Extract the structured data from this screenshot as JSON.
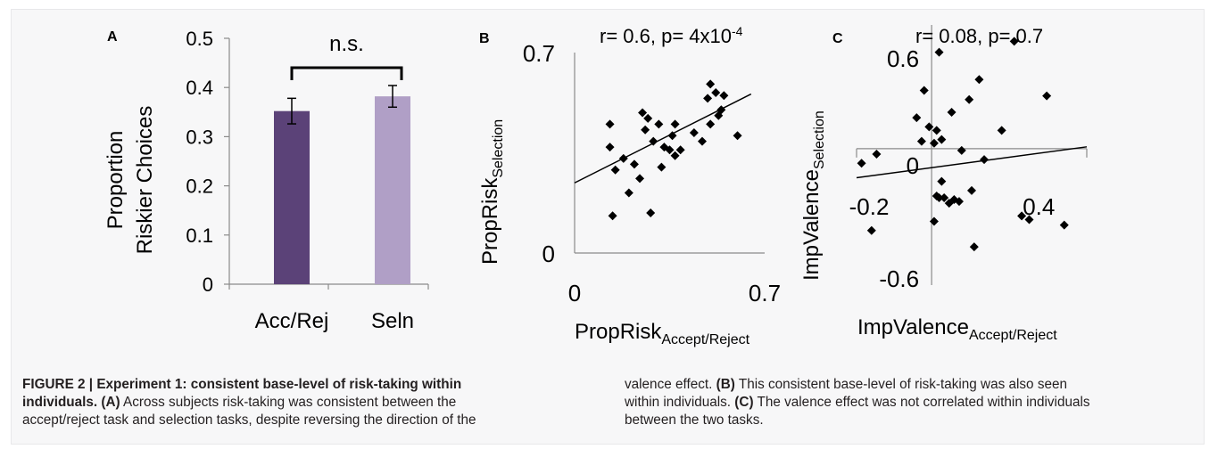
{
  "chart_data": [
    {
      "panel": "A",
      "type": "bar",
      "ylabel": [
        "Proportion",
        "Riskier Choices"
      ],
      "ylim": [
        0,
        0.5
      ],
      "yticks": [
        "0",
        "0.1",
        "0.2",
        "0.3",
        "0.4",
        "0.5"
      ],
      "categories": [
        "Acc/Rej",
        "Seln"
      ],
      "values": [
        0.352,
        0.382
      ],
      "errors": [
        0.026,
        0.022
      ],
      "colors": [
        "#5b4278",
        "#b09fc6"
      ],
      "annotation": "n.s.",
      "grid": false
    },
    {
      "panel": "B",
      "type": "scatter",
      "stats": "r= 0.6, p= 4x10",
      "stats_exp": "-4",
      "xlabel_main": "PropRisk",
      "xlabel_sub": "Accept/Reject",
      "ylabel_main": "PropRisk",
      "ylabel_sub": "Selection",
      "xlim": [
        0,
        0.7
      ],
      "ylim": [
        0,
        0.7
      ],
      "xticks": [
        "0",
        "0.7"
      ],
      "yticks": [
        "0",
        "0.7"
      ],
      "points": [
        [
          0.13,
          0.45
        ],
        [
          0.13,
          0.37
        ],
        [
          0.15,
          0.29
        ],
        [
          0.14,
          0.13
        ],
        [
          0.18,
          0.33
        ],
        [
          0.2,
          0.21
        ],
        [
          0.22,
          0.31
        ],
        [
          0.24,
          0.26
        ],
        [
          0.25,
          0.49
        ],
        [
          0.26,
          0.43
        ],
        [
          0.27,
          0.47
        ],
        [
          0.28,
          0.14
        ],
        [
          0.29,
          0.39
        ],
        [
          0.31,
          0.45
        ],
        [
          0.32,
          0.3
        ],
        [
          0.33,
          0.37
        ],
        [
          0.35,
          0.36
        ],
        [
          0.36,
          0.41
        ],
        [
          0.37,
          0.34
        ],
        [
          0.37,
          0.45
        ],
        [
          0.39,
          0.36
        ],
        [
          0.44,
          0.42
        ],
        [
          0.47,
          0.39
        ],
        [
          0.49,
          0.54
        ],
        [
          0.5,
          0.45
        ],
        [
          0.5,
          0.59
        ],
        [
          0.52,
          0.56
        ],
        [
          0.53,
          0.48
        ],
        [
          0.54,
          0.5
        ],
        [
          0.55,
          0.55
        ],
        [
          0.6,
          0.41
        ]
      ],
      "fit": {
        "x": [
          0,
          0.65
        ],
        "y": [
          0.245,
          0.555
        ]
      },
      "grid": false
    },
    {
      "panel": "C",
      "type": "scatter",
      "stats": "r= 0.08, p= 0.7",
      "xlabel_main": "ImpValence",
      "xlabel_sub": "Accept/Reject",
      "ylabel_main": "ImpValence",
      "ylabel_sub": "Selection",
      "xlim": [
        -0.3,
        0.62
      ],
      "ylim": [
        -0.75,
        0.68
      ],
      "xticks": [
        "-0.2",
        "0.4"
      ],
      "yticks": [
        "0.6",
        "0",
        "-0.6"
      ],
      "points": [
        [
          -0.28,
          -0.08
        ],
        [
          -0.24,
          -0.45
        ],
        [
          -0.22,
          -0.03
        ],
        [
          -0.06,
          0.17
        ],
        [
          -0.04,
          0.04
        ],
        [
          -0.03,
          0.32
        ],
        [
          -0.01,
          0.12
        ],
        [
          0.01,
          0.03
        ],
        [
          0.01,
          -0.4
        ],
        [
          0.02,
          0.1
        ],
        [
          0.02,
          -0.26
        ],
        [
          0.03,
          -0.27
        ],
        [
          0.03,
          0.53
        ],
        [
          0.04,
          0.05
        ],
        [
          0.04,
          -0.18
        ],
        [
          0.05,
          -0.27
        ],
        [
          0.07,
          -0.3
        ],
        [
          0.08,
          0.2
        ],
        [
          0.09,
          -0.28
        ],
        [
          0.11,
          -0.29
        ],
        [
          0.12,
          -0.01
        ],
        [
          0.15,
          0.27
        ],
        [
          0.16,
          -0.23
        ],
        [
          0.17,
          -0.54
        ],
        [
          0.19,
          0.38
        ],
        [
          0.21,
          -0.06
        ],
        [
          0.28,
          0.1
        ],
        [
          0.33,
          0.59
        ],
        [
          0.36,
          -0.37
        ],
        [
          0.39,
          -0.39
        ],
        [
          0.46,
          0.29
        ],
        [
          0.53,
          -0.42
        ]
      ],
      "fit": {
        "x": [
          -0.3,
          0.62
        ],
        "y": [
          -0.16,
          0.01
        ]
      },
      "grid": false
    }
  ],
  "caption": {
    "left_lines": [
      {
        "bold": "FIGURE 2 | Experiment 1: consistent base-level of risk-taking within",
        "text": ""
      },
      {
        "bold": "individuals. (A)",
        "text": " Across subjects risk-taking was consistent between the"
      },
      {
        "bold": "",
        "text": "accept/reject task and selection tasks, despite reversing the direction of the"
      }
    ],
    "right_lines": [
      {
        "pre": "valence effect. ",
        "bold": "(B)",
        "post": " This consistent base-level of risk-taking was also seen"
      },
      {
        "pre": "within individuals. ",
        "bold": "(C)",
        "post": " The valence effect was not correlated within individuals"
      },
      {
        "pre": "between the two tasks.",
        "bold": "",
        "post": ""
      }
    ]
  }
}
